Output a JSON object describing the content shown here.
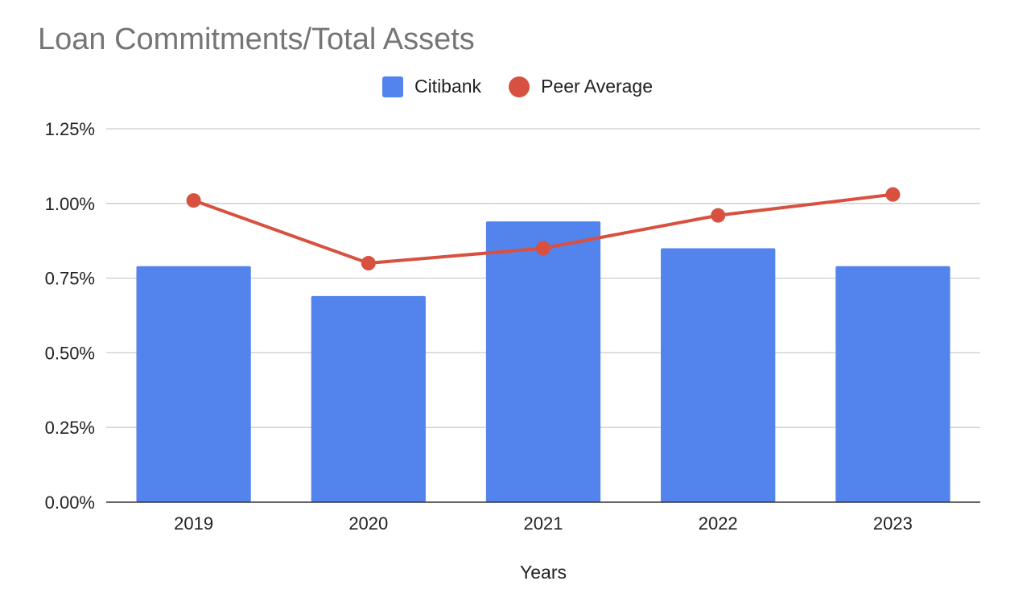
{
  "chart_data": {
    "type": "bar",
    "title": "Loan Commitments/Total Assets",
    "xlabel": "Years",
    "ylabel": "",
    "categories": [
      "2019",
      "2020",
      "2021",
      "2022",
      "2023"
    ],
    "ylim": [
      0,
      1.25
    ],
    "yticks": [
      0,
      0.25,
      0.5,
      0.75,
      1.0,
      1.25
    ],
    "ytick_labels": [
      "0.00%",
      "0.25%",
      "0.50%",
      "0.75%",
      "1.00%",
      "1.25%"
    ],
    "grid": true,
    "legend": "top-center",
    "series": [
      {
        "name": "Citibank",
        "type": "bar",
        "color": "#5383EC",
        "values": [
          0.79,
          0.69,
          0.94,
          0.85,
          0.79
        ]
      },
      {
        "name": "Peer Average",
        "type": "line",
        "color": "#D85140",
        "values": [
          1.01,
          0.8,
          0.85,
          0.96,
          1.03
        ]
      }
    ]
  }
}
